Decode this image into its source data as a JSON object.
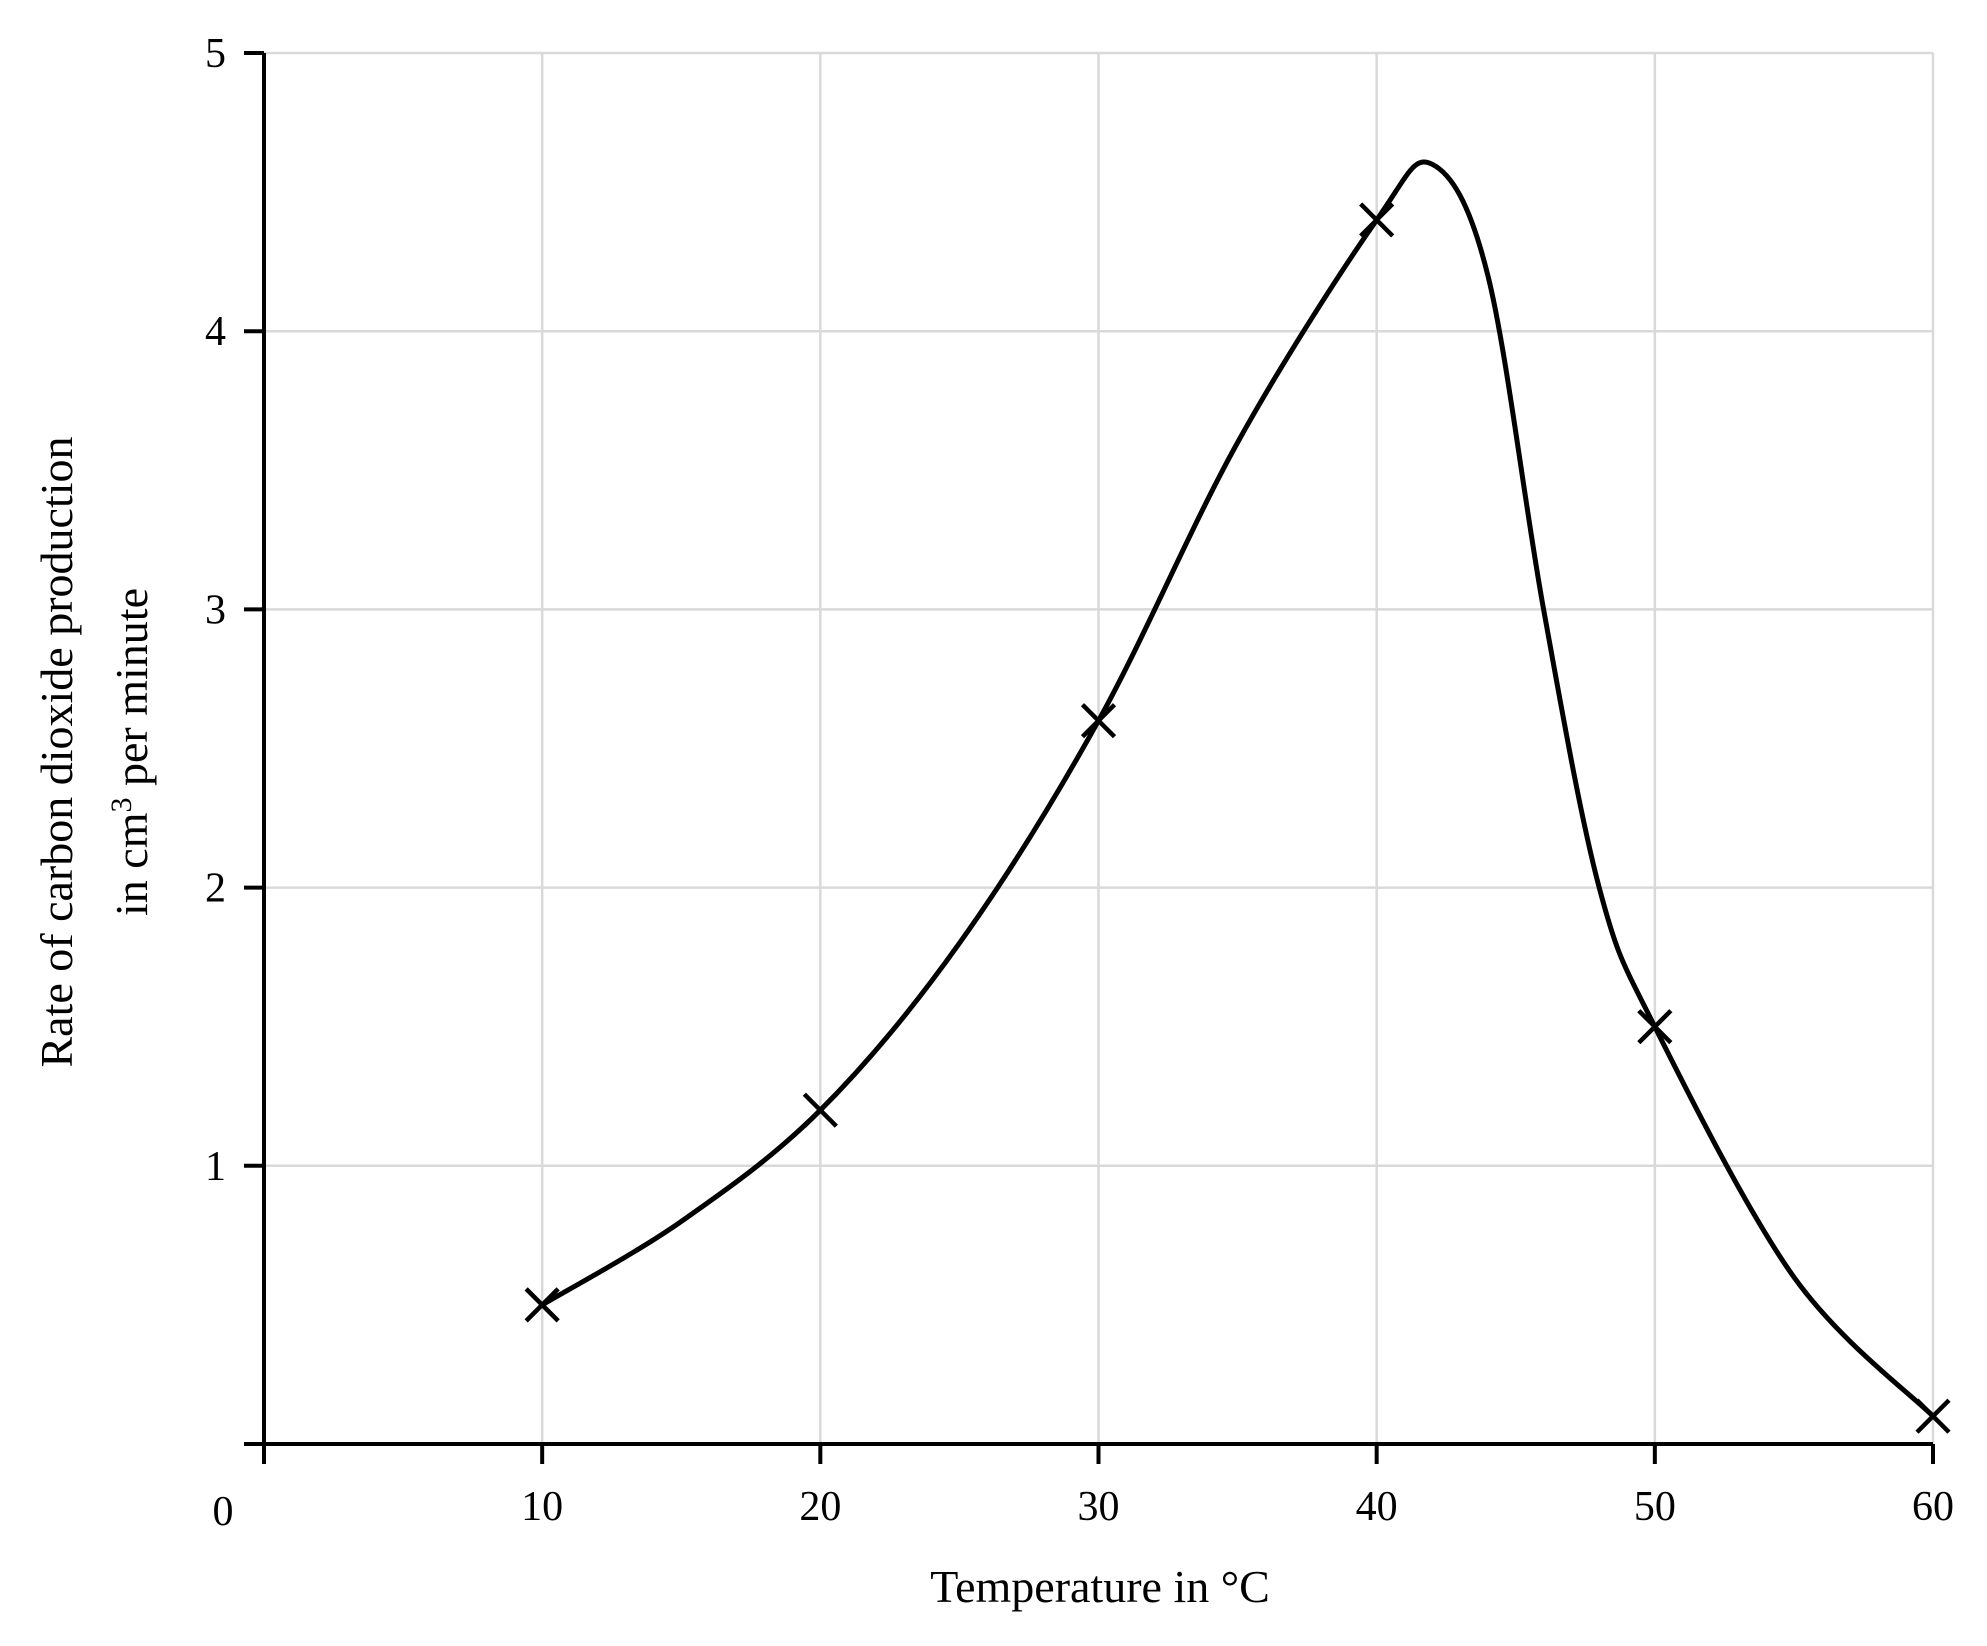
{
  "chart_data": {
    "type": "line",
    "xlabel": "Temperature in °C",
    "ylabel_line1": "Rate of carbon dioxide production",
    "ylabel_line2_prefix": "in cm",
    "ylabel_line2_superscript": "3",
    "ylabel_line2_suffix": " per minute",
    "origin_label": "0",
    "xlim": [
      0,
      60
    ],
    "ylim": [
      0,
      5
    ],
    "x_ticks": [
      10,
      20,
      30,
      40,
      50,
      60
    ],
    "x_tick_labels": [
      "10",
      "20",
      "30",
      "40",
      "50",
      "60"
    ],
    "y_ticks": [
      1,
      2,
      3,
      4,
      5
    ],
    "y_tick_labels": [
      "1",
      "2",
      "3",
      "4",
      "5"
    ],
    "grid": true,
    "series": [
      {
        "marker": "x",
        "x": [
          10,
          20,
          30,
          40,
          50,
          60
        ],
        "y": [
          0.5,
          1.2,
          2.6,
          4.4,
          1.5,
          0.1
        ]
      }
    ],
    "curve": {
      "x": [
        10,
        15,
        20,
        25,
        30,
        35,
        40,
        42,
        44,
        46,
        48,
        50,
        55,
        60
      ],
      "y": [
        0.5,
        0.8,
        1.2,
        1.8,
        2.6,
        3.6,
        4.4,
        4.6,
        4.2,
        3.0,
        2.0,
        1.5,
        0.6,
        0.1
      ]
    },
    "colors": {
      "line": "#000000",
      "grid": "#d9d9d9",
      "axis": "#000000"
    }
  }
}
